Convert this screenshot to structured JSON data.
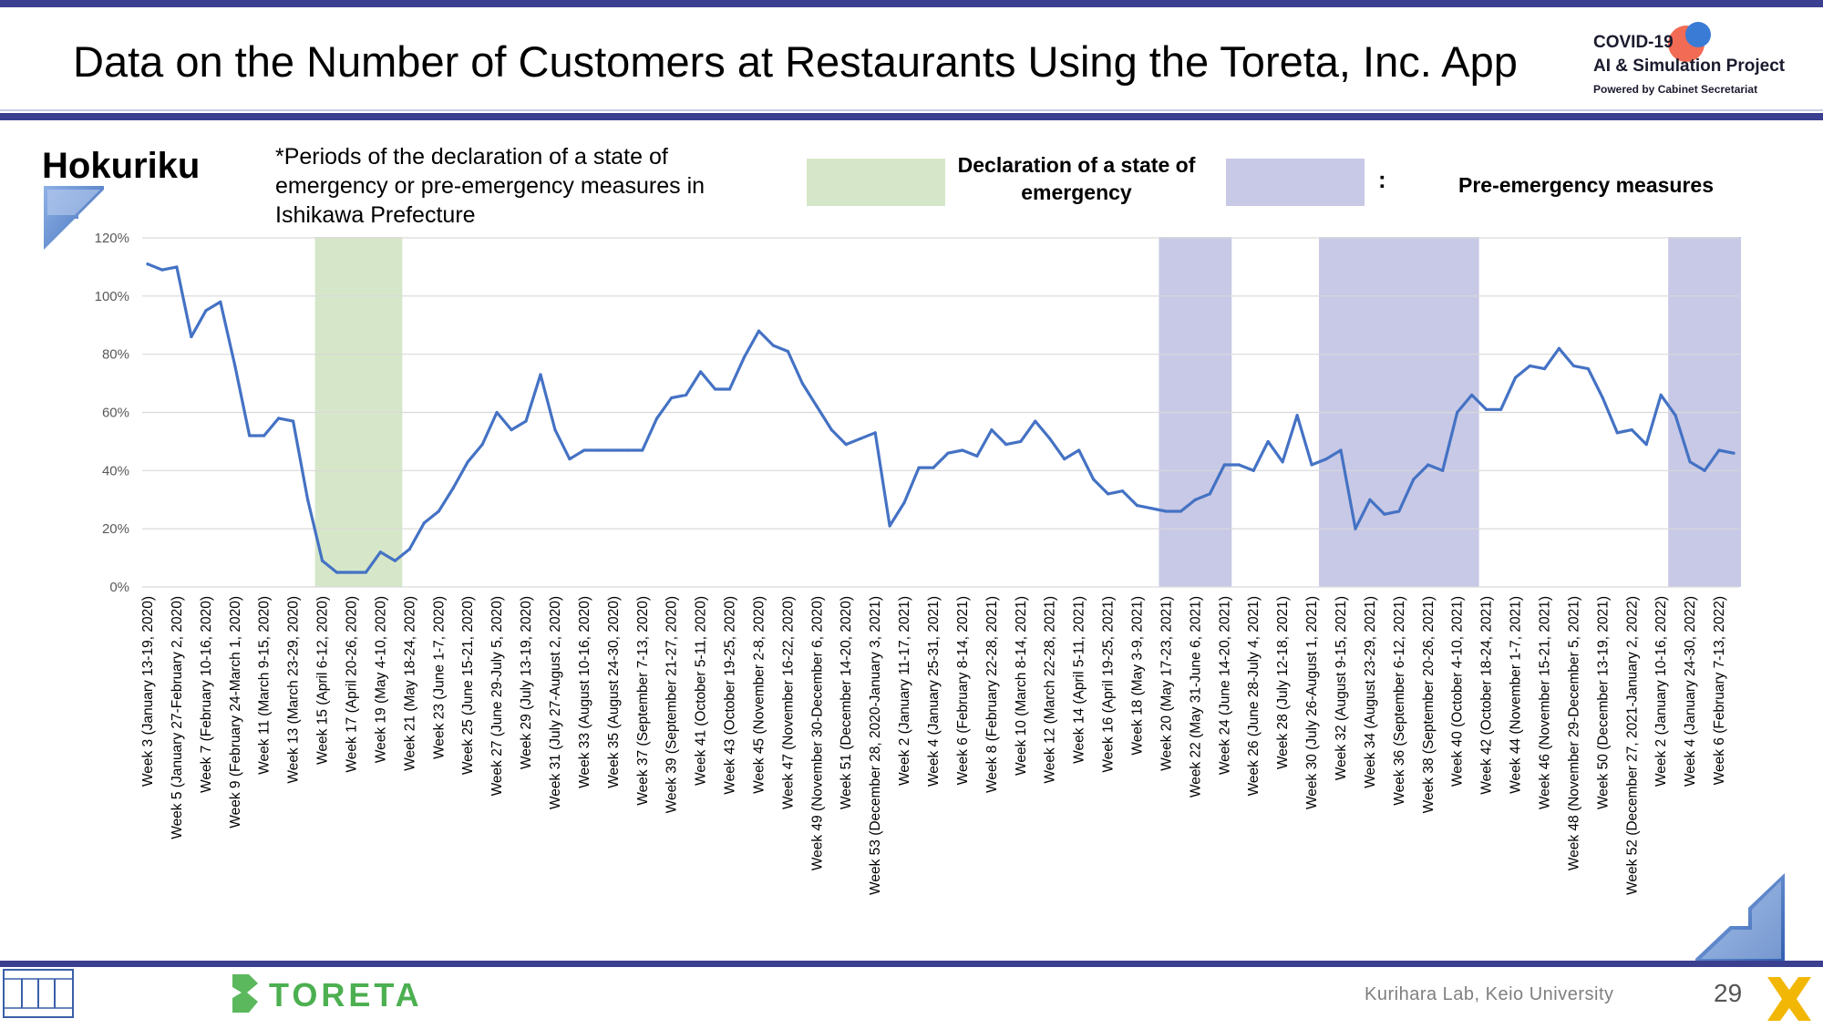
{
  "header": {
    "title": "Data on the Number of Customers at Restaurants Using the Toreta, Inc. App",
    "project_logo": {
      "line1": "COVID-19",
      "line2": "AI & Simulation Project",
      "line3": "Powered by Cabinet Secretariat"
    }
  },
  "region": "Hokuriku",
  "note": "*Periods of the declaration of a state of emergency or pre-emergency measures in Ishikawa Prefecture",
  "legend": {
    "emergency_label": "Declaration of a state of emergency",
    "colon": ":",
    "pre_emergency_label": "Pre-emergency measures"
  },
  "chart_data": {
    "type": "line",
    "y_tick_labels": [
      "0%",
      "20%",
      "40%",
      "60%",
      "80%",
      "100%",
      "120%"
    ],
    "ylim": [
      0,
      120
    ],
    "grid": true,
    "series": [
      {
        "color": "#4472c4",
        "values": [
          111,
          109,
          110,
          86,
          95,
          98,
          76,
          52,
          52,
          58,
          57,
          30,
          9,
          5,
          5,
          5,
          12,
          9,
          13,
          22,
          26,
          34,
          43,
          49,
          60,
          54,
          57,
          73,
          54,
          44,
          47,
          47,
          47,
          47,
          47,
          58,
          65,
          66,
          74,
          68,
          68,
          79,
          88,
          83,
          81,
          70,
          62,
          54,
          49,
          51,
          53,
          21,
          29,
          41,
          41,
          46,
          47,
          45,
          54,
          49,
          50,
          57,
          51,
          44,
          47,
          37,
          32,
          33,
          28,
          27,
          26,
          26,
          30,
          32,
          42,
          42,
          40,
          50,
          43,
          59,
          42,
          44,
          47,
          20,
          30,
          25,
          26,
          37,
          42,
          40,
          60,
          66,
          61,
          61,
          72,
          76,
          75,
          82,
          76,
          75,
          65,
          53,
          54,
          49,
          66,
          59,
          43,
          40,
          47,
          46
        ]
      }
    ],
    "highlight_periods": [
      {
        "kind": "emergency",
        "from_index": 12,
        "to_index": 17,
        "color": "#d6e7c9"
      },
      {
        "kind": "pre-emergency",
        "from_index": 70,
        "to_index": 74,
        "color": "#c8c9e6"
      },
      {
        "kind": "pre-emergency",
        "from_index": 81,
        "to_index": 91,
        "color": "#c8c9e6"
      },
      {
        "kind": "pre-emergency",
        "from_index": 105,
        "to_index": 109,
        "color": "#c8c9e6"
      }
    ],
    "x_tick_labels": [
      "Week 3 (January 13-19, 2020)",
      "Week 5 (January 27-February 2, 2020)",
      "Week 7 (February 10-16, 2020)",
      "Week 9 (February 24-March 1, 2020)",
      "Week 11 (March 9-15, 2020)",
      "Week 13 (March 23-29, 2020)",
      "Week 15 (April 6-12, 2020)",
      "Week 17 (April 20-26, 2020)",
      "Week 19 (May 4-10, 2020)",
      "Week 21 (May 18-24, 2020)",
      "Week 23 (June 1-7, 2020)",
      "Week 25 (June 15-21, 2020)",
      "Week 27 (June 29-July 5, 2020)",
      "Week 29 (July 13-19, 2020)",
      "Week 31 (July 27-August 2, 2020)",
      "Week 33 (August 10-16, 2020)",
      "Week 35 (August 24-30, 2020)",
      "Week 37 (September 7-13, 2020)",
      "Week 39 (September 21-27, 2020)",
      "Week 41 (October 5-11, 2020)",
      "Week 43 (October 19-25, 2020)",
      "Week 45 (November 2-8, 2020)",
      "Week 47 (November 16-22, 2020)",
      "Week 49 (November 30-December 6, 2020)",
      "Week 51 (December 14-20, 2020)",
      "Week 53 (December 28, 2020-January 3, 2021)",
      "Week 2 (January 11-17, 2021)",
      "Week 4 (January 25-31, 2021)",
      "Week 6 (February 8-14, 2021)",
      "Week 8 (February 22-28, 2021)",
      "Week 10 (March 8-14, 2021)",
      "Week 12 (March 22-28, 2021)",
      "Week 14 (April 5-11, 2021)",
      "Week 16 (April 19-25, 2021)",
      "Week 18 (May 3-9, 2021)",
      "Week 20 (May 17-23, 2021)",
      "Week 22 (May 31-June 6, 2021)",
      "Week 24 (June 14-20, 2021)",
      "Week 26 (June 28-July 4, 2021)",
      "Week 28 (July 12-18, 2021)",
      "Week 30 (July 26-August 1, 2021)",
      "Week 32 (August 9-15, 2021)",
      "Week 34 (August 23-29, 2021)",
      "Week 36 (September 6-12, 2021)",
      "Week 38 (September 20-26, 2021)",
      "Week 40 (October 4-10, 2021)",
      "Week 42 (October 18-24, 2021)",
      "Week 44 (November 1-7, 2021)",
      "Week 46 (November 15-21, 2021)",
      "Week 48 (November 29-December 5, 2021)",
      "Week 50 (December 13-19, 2021)",
      "Week 52 (December 27, 2021-January 2, 2022)",
      "Week 2 (January 10-16, 2022)",
      "Week 4 (January 24-30, 2022)",
      "Week 6 (February 7-13, 2022)"
    ],
    "x_tick_every": 2
  },
  "footer": {
    "lab": "Kurihara Lab, Keio University",
    "page_number": "29",
    "toreta_logo": "TORETA"
  },
  "colors": {
    "bar": "#3a3f8f",
    "line": "#4472c4",
    "emergency": "#d6e7c9",
    "pre_emergency": "#c8c9e6"
  }
}
